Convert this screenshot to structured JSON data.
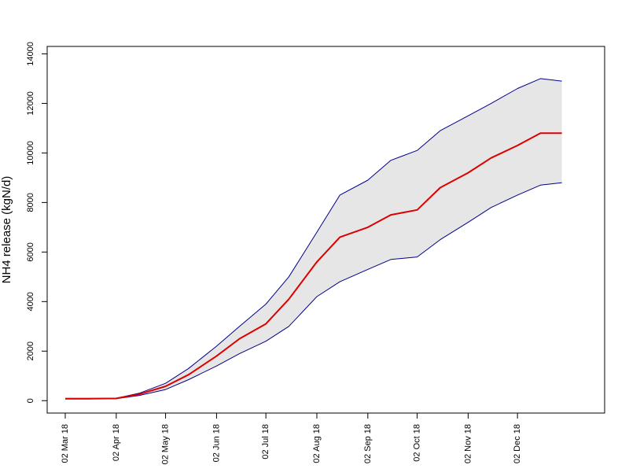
{
  "chart_data": {
    "type": "area",
    "title": "",
    "xlabel": "",
    "ylabel": "NH4 release (kgN/d)",
    "x_ticks": [
      "02 Mar 18",
      "02 Apr 18",
      "02 May 18",
      "02 Jun 18",
      "02 Jul 18",
      "02 Aug 18",
      "02 Sep 18",
      "02 Oct 18",
      "02 Nov 18",
      "02 Dec 18"
    ],
    "y_ticks": [
      "0",
      "2000",
      "4000",
      "6000",
      "8000",
      "10000",
      "12000",
      "14000"
    ],
    "ylim": [
      -500,
      14300
    ],
    "xlim": [
      "2018-02-19",
      "2019-01-24"
    ],
    "grid": false,
    "legend": "none",
    "x": [
      "2018-03-02",
      "2018-03-16",
      "2018-04-02",
      "2018-04-16",
      "2018-05-02",
      "2018-05-16",
      "2018-06-02",
      "2018-06-16",
      "2018-07-02",
      "2018-07-16",
      "2018-08-02",
      "2018-08-16",
      "2018-09-02",
      "2018-09-16",
      "2018-10-02",
      "2018-10-16",
      "2018-11-02",
      "2018-11-16",
      "2018-12-02",
      "2018-12-16",
      "2018-12-29"
    ],
    "series": [
      {
        "role": "upper",
        "color": "#00008b",
        "values": [
          90,
          90,
          100,
          300,
          700,
          1300,
          2200,
          3000,
          3900,
          5000,
          6800,
          8300,
          8900,
          9700,
          10100,
          10900,
          11500,
          12000,
          12600,
          13000,
          12900
        ]
      },
      {
        "role": "median",
        "color": "#dd0000",
        "values": [
          80,
          80,
          90,
          260,
          580,
          1050,
          1800,
          2500,
          3100,
          4100,
          5600,
          6600,
          7000,
          7500,
          7700,
          8600,
          9200,
          9800,
          10300,
          10800,
          10800
        ]
      },
      {
        "role": "lower",
        "color": "#00008b",
        "values": [
          70,
          70,
          80,
          210,
          450,
          850,
          1400,
          1900,
          2400,
          3000,
          4200,
          4800,
          5300,
          5700,
          5800,
          6500,
          7200,
          7800,
          8300,
          8700,
          8800
        ]
      }
    ],
    "band_fill": "#e6e6e6"
  }
}
